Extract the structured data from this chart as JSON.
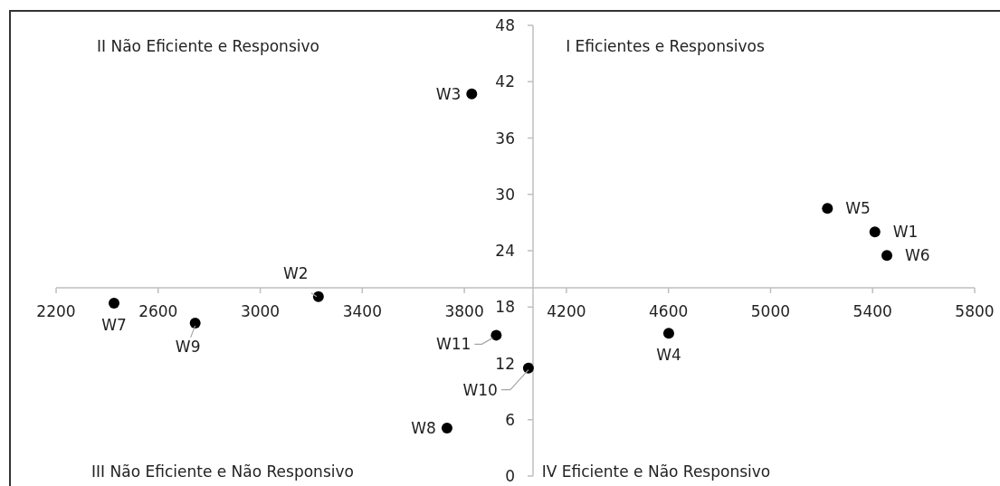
{
  "chart_data": {
    "type": "scatter",
    "xlim": [
      2200,
      5800
    ],
    "xticks": [
      2200,
      2600,
      3000,
      3400,
      3800,
      4200,
      4600,
      5000,
      5400,
      5800
    ],
    "ylim": [
      0,
      48
    ],
    "yticks": [
      0,
      6,
      12,
      18,
      24,
      30,
      36,
      42,
      48
    ],
    "grid": false,
    "legend": false,
    "marker": "circle",
    "annotations": [
      "I Eficientes e Responsivos",
      "II Não Eficiente e Responsivo",
      "III Não Eficiente e Não Responsivo",
      "IV Eficiente e Não Responsivo"
    ],
    "series": [
      {
        "name": "W1",
        "color": "#000000",
        "x": [
          5409
        ],
        "values": [
          26.0
        ]
      },
      {
        "name": "W2",
        "color": "#000000",
        "x": [
          3228
        ],
        "values": [
          19.1
        ]
      },
      {
        "name": "W3",
        "color": "#000000",
        "x": [
          3829
        ],
        "values": [
          40.7
        ]
      },
      {
        "name": "W4",
        "color": "#000000",
        "x": [
          4601
        ],
        "values": [
          15.2
        ]
      },
      {
        "name": "W5",
        "color": "#000000",
        "x": [
          5223
        ],
        "values": [
          28.5
        ]
      },
      {
        "name": "W6",
        "color": "#000000",
        "x": [
          5456
        ],
        "values": [
          23.5
        ]
      },
      {
        "name": "W7",
        "color": "#000000",
        "x": [
          2427
        ],
        "values": [
          18.4
        ]
      },
      {
        "name": "W8",
        "color": "#000000",
        "x": [
          3732
        ],
        "values": [
          5.1
        ]
      },
      {
        "name": "W9",
        "color": "#000000",
        "x": [
          2745
        ],
        "values": [
          16.3
        ]
      },
      {
        "name": "W10",
        "color": "#000000",
        "x": [
          4051
        ],
        "values": [
          11.5
        ]
      },
      {
        "name": "W11",
        "color": "#000000",
        "x": [
          3925
        ],
        "values": [
          15.0
        ]
      }
    ]
  }
}
